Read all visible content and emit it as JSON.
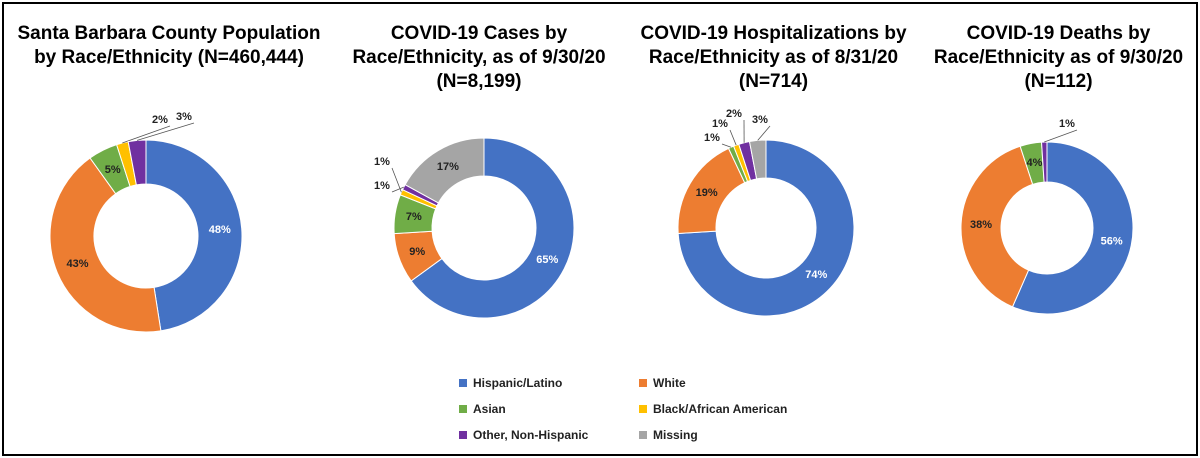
{
  "categories": [
    "Hispanic/Latino",
    "White",
    "Asian",
    "Black/African American",
    "Other, Non-Hispanic",
    "Missing"
  ],
  "colors": {
    "Hispanic/Latino": "#4472C4",
    "White": "#ED7D31",
    "Asian": "#70AD47",
    "Black/African American": "#FFC000",
    "Other, Non-Hispanic": "#7030A0",
    "Missing": "#A5A5A5"
  },
  "chart_data": [
    {
      "type": "pie",
      "title_lines": [
        "Santa Barbara County Population",
        "by Race/Ethnicity (N=460,444)"
      ],
      "slices": [
        {
          "category": "Hispanic/Latino",
          "value": 48,
          "label": "48%"
        },
        {
          "category": "White",
          "value": 43,
          "label": "43%"
        },
        {
          "category": "Asian",
          "value": 5,
          "label": "5%"
        },
        {
          "category": "Black/African American",
          "value": 2,
          "label": "2%"
        },
        {
          "category": "Other, Non-Hispanic",
          "value": 3,
          "label": "3%"
        }
      ]
    },
    {
      "type": "pie",
      "title_lines": [
        "COVID-19 Cases by",
        "Race/Ethnicity, as of 9/30/20",
        "(N=8,199)"
      ],
      "slices": [
        {
          "category": "Hispanic/Latino",
          "value": 65,
          "label": "65%"
        },
        {
          "category": "White",
          "value": 9,
          "label": "9%"
        },
        {
          "category": "Asian",
          "value": 7,
          "label": "7%"
        },
        {
          "category": "Black/African American",
          "value": 1,
          "label": "1%"
        },
        {
          "category": "Other, Non-Hispanic",
          "value": 1,
          "label": "1%"
        },
        {
          "category": "Missing",
          "value": 17,
          "label": "17%"
        }
      ]
    },
    {
      "type": "pie",
      "title_lines": [
        "COVID-19 Hospitalizations by",
        "Race/Ethnicity as of 8/31/20",
        "(N=714)"
      ],
      "slices": [
        {
          "category": "Hispanic/Latino",
          "value": 74,
          "label": "74%"
        },
        {
          "category": "White",
          "value": 19,
          "label": "19%"
        },
        {
          "category": "Asian",
          "value": 1,
          "label": "1%"
        },
        {
          "category": "Black/African American",
          "value": 1,
          "label": "1%"
        },
        {
          "category": "Other, Non-Hispanic",
          "value": 2,
          "label": "2%"
        },
        {
          "category": "Missing",
          "value": 3,
          "label": "3%"
        }
      ]
    },
    {
      "type": "pie",
      "title_lines": [
        "COVID-19 Deaths by",
        "Race/Ethnicity as of 9/30/20",
        "(N=112)"
      ],
      "slices": [
        {
          "category": "Hispanic/Latino",
          "value": 56,
          "label": "56%"
        },
        {
          "category": "White",
          "value": 38,
          "label": "38%"
        },
        {
          "category": "Asian",
          "value": 4,
          "label": "4%"
        },
        {
          "category": "Other, Non-Hispanic",
          "value": 1,
          "label": "1%"
        }
      ]
    }
  ],
  "legend": {
    "placement": "bottom-center",
    "items": [
      "Hispanic/Latino",
      "White",
      "Asian",
      "Black/African American",
      "Other, Non-Hispanic",
      "Missing"
    ]
  }
}
